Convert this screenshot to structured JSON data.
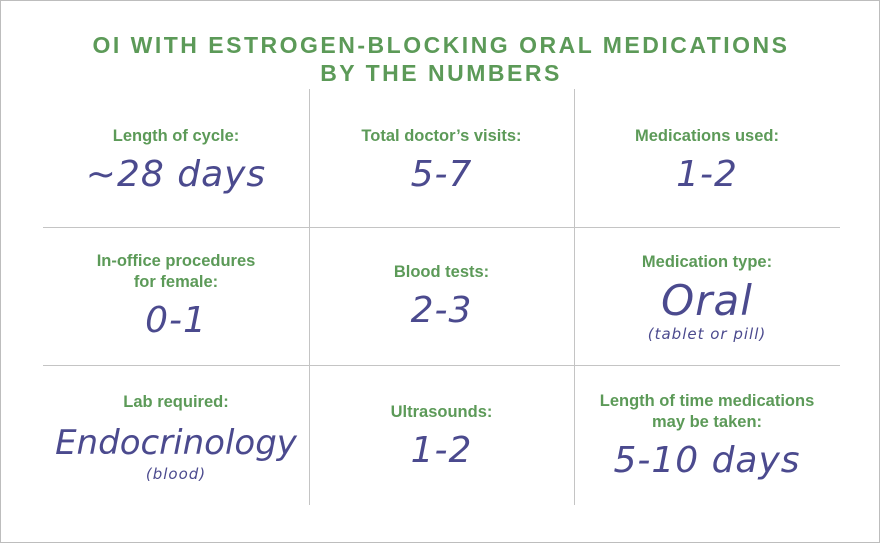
{
  "title_line1": "OI WITH ESTROGEN-BLOCKING ORAL MEDICATIONS",
  "title_line2": "BY THE NUMBERS",
  "cells": [
    {
      "label": "Length of cycle:",
      "value": "~28 days"
    },
    {
      "label": "Total doctor’s visits:",
      "value": "5-7"
    },
    {
      "label": "Medications used:",
      "value": "1-2"
    },
    {
      "label_line1": "In-office procedures",
      "label_line2": "for female:",
      "value": "0-1"
    },
    {
      "label": "Blood tests:",
      "value": "2-3"
    },
    {
      "label": "Medication type:",
      "value": "Oral",
      "note": "(tablet or pill)"
    },
    {
      "label": "Lab required:",
      "value": "Endocrinology",
      "note": "(blood)"
    },
    {
      "label": "Ultrasounds:",
      "value": "1-2"
    },
    {
      "label_line1": "Length of time medications",
      "label_line2": "may be taken:",
      "value": "5-10 days"
    }
  ],
  "colors": {
    "title": "#5c9a58",
    "value": "#4b4a8e",
    "grid": "#c4c4c4"
  }
}
